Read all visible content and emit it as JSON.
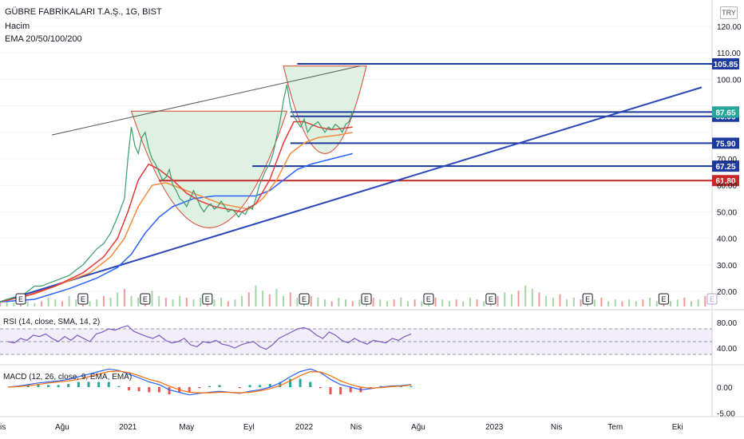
{
  "header": {
    "symbol_line": "GÜBRE FABRİKALARI T.A.Ş., 1G, BIST",
    "volume_label": "Hacim",
    "ema_label": "EMA 20/50/100/200",
    "currency": "TRY"
  },
  "panes": {
    "rsi_label": "RSI (14, close, SMA, 14, 2)",
    "macd_label": "MACD (12, 26, close, 9, EMA, EMA)"
  },
  "colors": {
    "price": "#3a9b6c",
    "ema20": "#e53935",
    "ema50": "#f48b3e",
    "ema200": "#2962ff",
    "trend": "#2846b8",
    "cup_fill": "#d7eedb",
    "rsi_line": "#7e57c2",
    "rsi_signal": "#f0c24a",
    "macd": "#2962ff",
    "macd_signal": "#ff6d00"
  },
  "chart_data": {
    "type": "line",
    "price_axis": {
      "ticks": [
        120,
        110,
        100,
        90,
        80,
        70,
        60,
        50,
        40,
        30,
        20
      ],
      "tick_labels": [
        "120.00",
        "110.00",
        "100.00",
        "",
        "",
        "70.00",
        "60.00",
        "50.00",
        "40.00",
        "30.00",
        "20.00"
      ],
      "ylim": [
        13,
        126
      ]
    },
    "time_axis": {
      "labels": [
        "Nis",
        "Ağu",
        "2021",
        "May",
        "Eyl",
        "2022",
        "Nis",
        "Ağu",
        "2023",
        "Nis",
        "Tem",
        "Eki"
      ],
      "index": [
        0,
        18,
        37,
        54,
        72,
        88,
        103,
        121,
        143,
        161,
        178,
        196
      ]
    },
    "price_series": [
      [
        0,
        16
      ],
      [
        2,
        17
      ],
      [
        4,
        17.5
      ],
      [
        6,
        18
      ],
      [
        8,
        20
      ],
      [
        10,
        22
      ],
      [
        12,
        22
      ],
      [
        14,
        23
      ],
      [
        16,
        24
      ],
      [
        18,
        25
      ],
      [
        20,
        26
      ],
      [
        22,
        28
      ],
      [
        24,
        30
      ],
      [
        26,
        33
      ],
      [
        28,
        36
      ],
      [
        30,
        38
      ],
      [
        32,
        42
      ],
      [
        34,
        48
      ],
      [
        36,
        55
      ],
      [
        37,
        70
      ],
      [
        38,
        82
      ],
      [
        39,
        75
      ],
      [
        40,
        72
      ],
      [
        41,
        78
      ],
      [
        42,
        80
      ],
      [
        43,
        74
      ],
      [
        44,
        70
      ],
      [
        45,
        68
      ],
      [
        46,
        65
      ],
      [
        47,
        62
      ],
      [
        48,
        63
      ],
      [
        49,
        66
      ],
      [
        50,
        60
      ],
      [
        51,
        58
      ],
      [
        52,
        55
      ],
      [
        53,
        54
      ],
      [
        54,
        52
      ],
      [
        55,
        55
      ],
      [
        56,
        58
      ],
      [
        57,
        55
      ],
      [
        58,
        52
      ],
      [
        59,
        50
      ],
      [
        60,
        52
      ],
      [
        61,
        53
      ],
      [
        62,
        51
      ],
      [
        63,
        52
      ],
      [
        64,
        54
      ],
      [
        65,
        52
      ],
      [
        66,
        50
      ],
      [
        67,
        51
      ],
      [
        68,
        50
      ],
      [
        69,
        48
      ],
      [
        70,
        50
      ],
      [
        71,
        49
      ],
      [
        72,
        52
      ],
      [
        73,
        51
      ],
      [
        74,
        55
      ],
      [
        75,
        60
      ],
      [
        76,
        63
      ],
      [
        77,
        66
      ],
      [
        78,
        68
      ],
      [
        79,
        72
      ],
      [
        80,
        78
      ],
      [
        81,
        84
      ],
      [
        82,
        92
      ],
      [
        83,
        98
      ],
      [
        84,
        90
      ],
      [
        85,
        86
      ],
      [
        86,
        84
      ],
      [
        87,
        82
      ],
      [
        88,
        85
      ],
      [
        89,
        80
      ],
      [
        90,
        82
      ],
      [
        91,
        83
      ],
      [
        92,
        84
      ],
      [
        93,
        82
      ],
      [
        94,
        80
      ],
      [
        95,
        82
      ],
      [
        96,
        81
      ],
      [
        97,
        83
      ],
      [
        98,
        82
      ],
      [
        99,
        80
      ],
      [
        100,
        83
      ],
      [
        101,
        84
      ],
      [
        102,
        88
      ]
    ],
    "ema20": [
      [
        0,
        16
      ],
      [
        8,
        18.5
      ],
      [
        16,
        22
      ],
      [
        24,
        27
      ],
      [
        30,
        33
      ],
      [
        34,
        40
      ],
      [
        37,
        50
      ],
      [
        40,
        62
      ],
      [
        43,
        68
      ],
      [
        46,
        66
      ],
      [
        50,
        62
      ],
      [
        54,
        57
      ],
      [
        58,
        54
      ],
      [
        62,
        52
      ],
      [
        66,
        51
      ],
      [
        70,
        50
      ],
      [
        74,
        53
      ],
      [
        78,
        62
      ],
      [
        82,
        76
      ],
      [
        85,
        84
      ],
      [
        88,
        84
      ],
      [
        92,
        82
      ],
      [
        96,
        81
      ],
      [
        102,
        82
      ]
    ],
    "ema50": [
      [
        0,
        16
      ],
      [
        10,
        19
      ],
      [
        18,
        23
      ],
      [
        26,
        27
      ],
      [
        32,
        33
      ],
      [
        36,
        40
      ],
      [
        40,
        52
      ],
      [
        44,
        60
      ],
      [
        48,
        61
      ],
      [
        52,
        59
      ],
      [
        56,
        57
      ],
      [
        60,
        55
      ],
      [
        64,
        53
      ],
      [
        68,
        52
      ],
      [
        72,
        51
      ],
      [
        76,
        55
      ],
      [
        80,
        62
      ],
      [
        84,
        72
      ],
      [
        88,
        76
      ],
      [
        92,
        78
      ],
      [
        98,
        79
      ],
      [
        102,
        80
      ]
    ],
    "ema200": [
      [
        0,
        16
      ],
      [
        10,
        17
      ],
      [
        20,
        21
      ],
      [
        28,
        25
      ],
      [
        34,
        29
      ],
      [
        38,
        34
      ],
      [
        42,
        42
      ],
      [
        46,
        48
      ],
      [
        50,
        52
      ],
      [
        56,
        55
      ],
      [
        62,
        56
      ],
      [
        68,
        56
      ],
      [
        74,
        56
      ],
      [
        78,
        58
      ],
      [
        82,
        62
      ],
      [
        86,
        66
      ],
      [
        90,
        68
      ],
      [
        96,
        70
      ],
      [
        102,
        72
      ]
    ],
    "volume": [
      2,
      3,
      2,
      4,
      3,
      2,
      3,
      5,
      4,
      3,
      6,
      4,
      5,
      3,
      4,
      6,
      5,
      8,
      10,
      6,
      5,
      7,
      9,
      6,
      5,
      4,
      6,
      5,
      4,
      5,
      3,
      4,
      5,
      3,
      4,
      6,
      8,
      12,
      9,
      7,
      10,
      6,
      8,
      5,
      4,
      6,
      5,
      4,
      3,
      5,
      4,
      3,
      4,
      3,
      5,
      4,
      3,
      4,
      5,
      3,
      4,
      3,
      4,
      5,
      4,
      3,
      4,
      3,
      5,
      4,
      3,
      4,
      6,
      8,
      7,
      9,
      12,
      10,
      8,
      6,
      5,
      7,
      4,
      5,
      4,
      3,
      4,
      5,
      3,
      4,
      3,
      4,
      3,
      4,
      5,
      3,
      4,
      3,
      4,
      5,
      3,
      4,
      6
    ],
    "levels": [
      {
        "value": 105.85,
        "label": "105.85",
        "color": "#1c3a9e"
      },
      {
        "value": 87.65,
        "label": "87.65",
        "color": "#1c3a9e"
      },
      {
        "value": 86.05,
        "label": "86.05",
        "color": "#1c3a9e"
      },
      {
        "value": 75.9,
        "label": "75.90",
        "color": "#1c3a9e"
      },
      {
        "value": 67.25,
        "label": "67.25",
        "color": "#1c3a9e"
      },
      {
        "value": 61.8,
        "label": "61.80",
        "color": "#c62828"
      }
    ],
    "price_badge": {
      "value": 87.65,
      "label": "87.65",
      "color": "#26a69a"
    },
    "events": [
      {
        "index": 3,
        "label": "E"
      },
      {
        "index": 12,
        "label": "E"
      },
      {
        "index": 21,
        "label": "E"
      },
      {
        "index": 30,
        "label": "E"
      },
      {
        "index": 44,
        "label": "E"
      },
      {
        "index": 53,
        "label": "E"
      },
      {
        "index": 62,
        "label": "E"
      },
      {
        "index": 71,
        "label": "E"
      },
      {
        "index": 85,
        "label": "E"
      },
      {
        "index": 96,
        "label": "E"
      },
      {
        "index": 103,
        "label": "E"
      }
    ],
    "rsi": {
      "ticks": [
        80,
        40
      ],
      "tick_labels": [
        "80.00",
        "40.00"
      ],
      "values": [
        50,
        48,
        55,
        52,
        60,
        58,
        62,
        55,
        50,
        58,
        52,
        60,
        55,
        50,
        62,
        65,
        70,
        68,
        72,
        75,
        66,
        62,
        58,
        55,
        60,
        52,
        48,
        50,
        55,
        45,
        42,
        50,
        48,
        52,
        46,
        44,
        40,
        45,
        48,
        50,
        42,
        38,
        45,
        55,
        60,
        65,
        70,
        72,
        68,
        60,
        55,
        65,
        60,
        52,
        48,
        55,
        50,
        46,
        52,
        50,
        48,
        55,
        52,
        58,
        62
      ]
    },
    "macd": {
      "ticks": [
        0,
        -5
      ],
      "tick_labels": [
        "0.00",
        "-5.00"
      ],
      "macd_line": [
        0,
        0.2,
        0.5,
        0.8,
        1,
        1.2,
        1.5,
        2,
        2.5,
        3,
        3.5,
        3.2,
        2.5,
        1.8,
        1,
        0.5,
        -0.5,
        -1,
        -1.5,
        -1.2,
        -1,
        -0.8,
        -1,
        -1.2,
        -0.8,
        -0.5,
        0,
        0.8,
        2,
        3,
        3.5,
        2.8,
        1.5,
        0.5,
        0,
        -0.5,
        -0.3,
        0,
        0.2,
        0.3,
        0.5
      ],
      "signal_line": [
        0,
        0.1,
        0.3,
        0.5,
        0.8,
        1,
        1.2,
        1.5,
        2,
        2.5,
        3,
        3.1,
        2.8,
        2.2,
        1.5,
        1,
        0.2,
        -0.5,
        -1,
        -1.1,
        -1.1,
        -1,
        -1,
        -1.1,
        -1,
        -0.7,
        -0.3,
        0.3,
        1.2,
        2.2,
        3,
        2.9,
        2.2,
        1.2,
        0.5,
        0,
        -0.2,
        -0.1,
        0.1,
        0.2,
        0.4
      ]
    },
    "trendlines": [
      {
        "from": [
          15,
          79
        ],
        "to": [
          104,
          105
        ],
        "color": "#555555",
        "width": 1
      },
      {
        "from": [
          0,
          16
        ],
        "to": [
          203,
          97
        ],
        "color": "#2846b8",
        "width": 2
      }
    ],
    "cups": [
      {
        "x0": 38,
        "x1": 83,
        "y_top": 88,
        "y_bottom": 44
      },
      {
        "x0": 82,
        "x1": 106,
        "y_top": 105,
        "y_bottom": 72
      }
    ]
  }
}
